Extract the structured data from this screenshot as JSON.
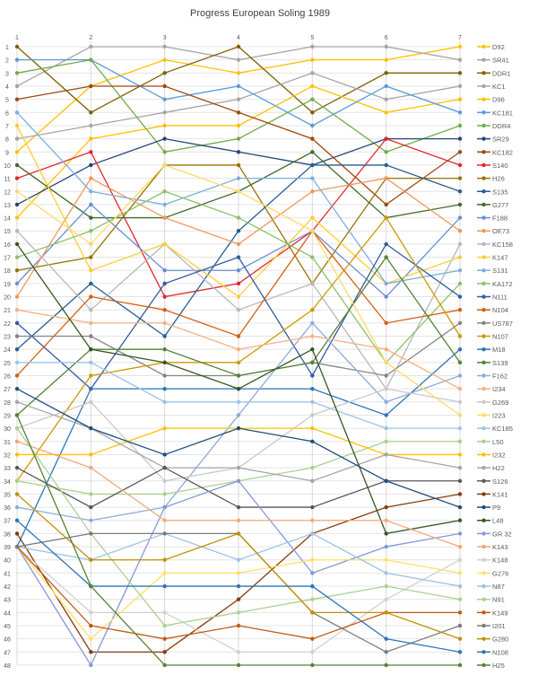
{
  "chart_data": {
    "type": "line",
    "title": "Progress European Soling 1989",
    "x": [
      1,
      2,
      3,
      4,
      5,
      6,
      7
    ],
    "ylim": [
      1,
      48
    ],
    "y_inverted": true,
    "grid": true,
    "legend_position": "right",
    "series": [
      {
        "name": "D92",
        "color": "#ffc000",
        "values": [
          9,
          4,
          2,
          3,
          2,
          2,
          1
        ]
      },
      {
        "name": "SR41",
        "color": "#a5a5a5",
        "values": [
          4,
          1,
          1,
          2,
          1,
          1,
          2
        ]
      },
      {
        "name": "DDR1",
        "color": "#7f6000",
        "values": [
          1,
          6,
          3,
          1,
          6,
          3,
          3
        ]
      },
      {
        "name": "KC1",
        "color": "#a5a5a5",
        "values": [
          8,
          7,
          6,
          5,
          3,
          5,
          4
        ]
      },
      {
        "name": "D96",
        "color": "#ffc000",
        "values": [
          14,
          8,
          7,
          7,
          4,
          6,
          5
        ]
      },
      {
        "name": "KC181",
        "color": "#5b9bd5",
        "values": [
          2,
          2,
          5,
          4,
          7,
          4,
          6
        ]
      },
      {
        "name": "DDR4",
        "color": "#70ad47",
        "values": [
          3,
          2,
          9,
          8,
          5,
          9,
          7
        ]
      },
      {
        "name": "SR29",
        "color": "#264478",
        "values": [
          13,
          10,
          8,
          9,
          10,
          8,
          8
        ]
      },
      {
        "name": "KC182",
        "color": "#9e480e",
        "values": [
          5,
          4,
          4,
          6,
          8,
          13,
          9
        ]
      },
      {
        "name": "S140",
        "color": "#e3262b",
        "values": [
          11,
          9,
          20,
          19,
          15,
          8,
          10
        ]
      },
      {
        "name": "H26",
        "color": "#997300",
        "values": [
          18,
          17,
          10,
          10,
          19,
          11,
          11
        ]
      },
      {
        "name": "S135",
        "color": "#255e91",
        "values": [
          24,
          19,
          23,
          15,
          10,
          10,
          12
        ]
      },
      {
        "name": "G277",
        "color": "#43682b",
        "values": [
          10,
          14,
          14,
          12,
          9,
          14,
          13
        ]
      },
      {
        "name": "F188",
        "color": "#698ed0",
        "values": [
          19,
          13,
          18,
          18,
          15,
          20,
          14
        ]
      },
      {
        "name": "OE73",
        "color": "#f1975a",
        "values": [
          20,
          11,
          14,
          16,
          12,
          11,
          15
        ]
      },
      {
        "name": "KC158",
        "color": "#b7b7b7",
        "values": [
          15,
          21,
          16,
          21,
          19,
          27,
          16
        ]
      },
      {
        "name": "K147",
        "color": "#ffcd33",
        "values": [
          7,
          18,
          16,
          20,
          14,
          19,
          17
        ]
      },
      {
        "name": "S131",
        "color": "#7cafdd",
        "values": [
          6,
          12,
          13,
          11,
          11,
          19,
          18
        ]
      },
      {
        "name": "KA172",
        "color": "#8cc168",
        "values": [
          17,
          15,
          12,
          14,
          17,
          25,
          19
        ]
      },
      {
        "name": "N111",
        "color": "#335aa1",
        "values": [
          22,
          27,
          19,
          17,
          26,
          16,
          20
        ]
      },
      {
        "name": "N104",
        "color": "#d26012",
        "values": [
          26,
          20,
          21,
          23,
          15,
          22,
          21
        ]
      },
      {
        "name": "US787",
        "color": "#848484",
        "values": [
          23,
          23,
          26,
          26,
          25,
          26,
          22
        ]
      },
      {
        "name": "N107",
        "color": "#cc9a00",
        "values": [
          34,
          26,
          25,
          25,
          21,
          14,
          23
        ]
      },
      {
        "name": "M18",
        "color": "#2e75b6",
        "values": [
          39,
          27,
          27,
          27,
          27,
          29,
          24
        ]
      },
      {
        "name": "S139",
        "color": "#548235",
        "values": [
          29,
          24,
          24,
          26,
          25,
          17,
          25
        ]
      },
      {
        "name": "F162",
        "color": "#8faadc",
        "values": [
          36,
          37,
          36,
          29,
          22,
          28,
          26
        ]
      },
      {
        "name": "I234",
        "color": "#f4b183",
        "values": [
          21,
          22,
          22,
          24,
          23,
          24,
          27
        ]
      },
      {
        "name": "G269",
        "color": "#c9c9c9",
        "values": [
          30,
          28,
          34,
          33,
          29,
          27,
          28
        ]
      },
      {
        "name": "I223",
        "color": "#ffd966",
        "values": [
          12,
          16,
          10,
          12,
          15,
          25,
          29
        ]
      },
      {
        "name": "KC185",
        "color": "#9dc3e6",
        "values": [
          25,
          25,
          28,
          28,
          28,
          30,
          30
        ]
      },
      {
        "name": "L50",
        "color": "#a9d18e",
        "values": [
          34,
          35,
          35,
          34,
          33,
          31,
          31
        ]
      },
      {
        "name": "I232",
        "color": "#ffc000",
        "values": [
          32,
          32,
          30,
          30,
          30,
          32,
          32
        ]
      },
      {
        "name": "H22",
        "color": "#a5a5a5",
        "values": [
          28,
          30,
          33,
          33,
          34,
          32,
          33
        ]
      },
      {
        "name": "S126",
        "color": "#595959",
        "values": [
          33,
          36,
          33,
          36,
          36,
          34,
          34
        ]
      },
      {
        "name": "K141",
        "color": "#843c0c",
        "values": [
          38,
          47,
          47,
          43,
          38,
          36,
          35
        ]
      },
      {
        "name": "P9",
        "color": "#1f4e79",
        "values": [
          27,
          30,
          32,
          30,
          31,
          34,
          36
        ]
      },
      {
        "name": "L48",
        "color": "#375623",
        "values": [
          16,
          24,
          25,
          27,
          24,
          38,
          37
        ]
      },
      {
        "name": "GR 32",
        "color": "#8497d8",
        "values": [
          39,
          48,
          36,
          34,
          41,
          39,
          38
        ]
      },
      {
        "name": "K143",
        "color": "#f4a77a",
        "values": [
          31,
          33,
          37,
          37,
          37,
          37,
          39
        ]
      },
      {
        "name": "K148",
        "color": "#d0d0d0",
        "values": [
          39,
          44,
          44,
          47,
          47,
          43,
          40
        ]
      },
      {
        "name": "G276",
        "color": "#ffe066",
        "values": [
          39,
          46,
          41,
          41,
          40,
          40,
          41
        ]
      },
      {
        "name": "N87",
        "color": "#9cc2e5",
        "values": [
          39,
          40,
          38,
          40,
          38,
          41,
          42
        ]
      },
      {
        "name": "N91",
        "color": "#a9d18e",
        "values": [
          30,
          38,
          45,
          44,
          43,
          42,
          43
        ]
      },
      {
        "name": "K149",
        "color": "#c55a11",
        "values": [
          39,
          45,
          46,
          45,
          46,
          44,
          44
        ]
      },
      {
        "name": "I201",
        "color": "#7b7b7b",
        "values": [
          39,
          38,
          38,
          38,
          44,
          47,
          45
        ]
      },
      {
        "name": "G280",
        "color": "#bf9000",
        "values": [
          35,
          40,
          40,
          38,
          44,
          44,
          46
        ]
      },
      {
        "name": "N108",
        "color": "#2e75b6",
        "values": [
          37,
          42,
          42,
          42,
          42,
          46,
          47
        ]
      },
      {
        "name": "H25",
        "color": "#548235",
        "values": [
          29,
          42,
          48,
          48,
          48,
          48,
          48
        ]
      }
    ]
  }
}
